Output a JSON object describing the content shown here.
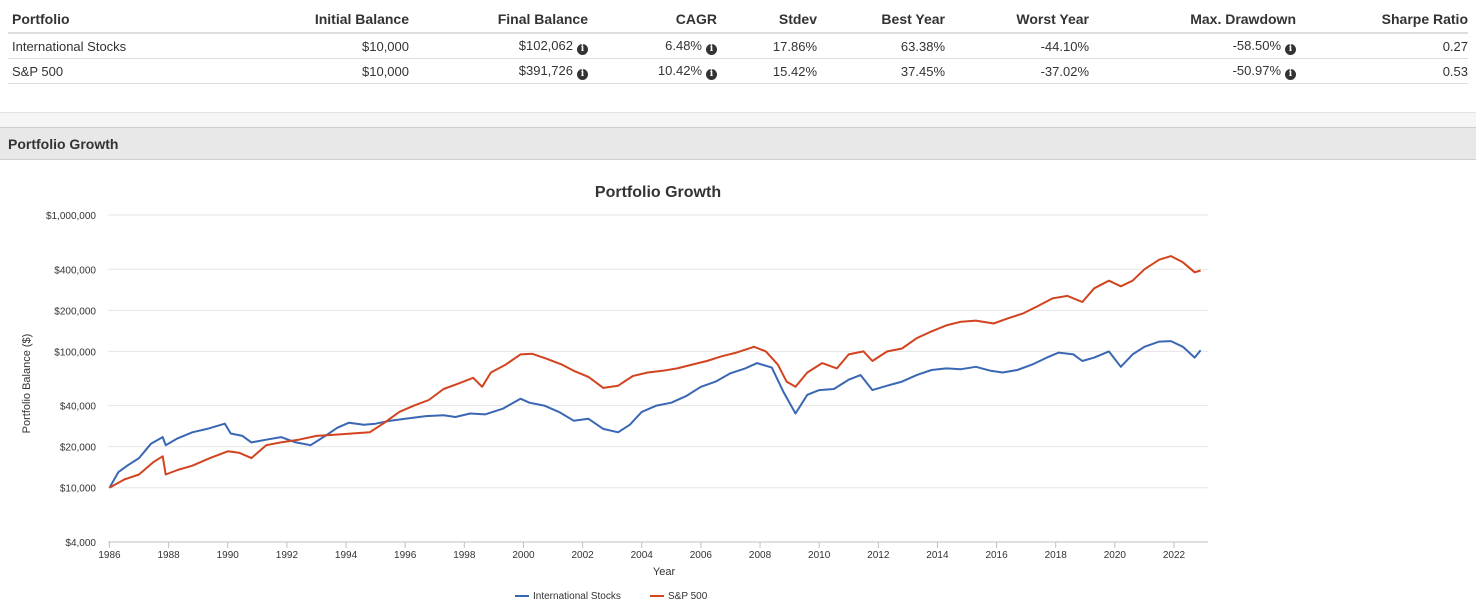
{
  "table": {
    "headers": [
      "Portfolio",
      "Initial Balance",
      "Final Balance",
      "CAGR",
      "Stdev",
      "Best Year",
      "Worst Year",
      "Max. Drawdown",
      "Sharpe Ratio"
    ],
    "rows": [
      {
        "portfolio": "International Stocks",
        "initial": "$10,000",
        "final": "$102,062",
        "cagr": "6.48%",
        "stdev": "17.86%",
        "best": "63.38%",
        "worst": "-44.10%",
        "drawdown": "-58.50%",
        "sharpe": "0.27"
      },
      {
        "portfolio": "S&P 500",
        "initial": "$10,000",
        "final": "$391,726",
        "cagr": "10.42%",
        "stdev": "15.42%",
        "best": "37.45%",
        "worst": "-37.02%",
        "drawdown": "-50.97%",
        "sharpe": "0.53"
      }
    ],
    "info_icon": "info-circle-icon"
  },
  "section_title": "Portfolio Growth",
  "chart_data": {
    "type": "line",
    "title": "Portfolio Growth",
    "xlabel": "Year",
    "ylabel": "Portfolio Balance ($)",
    "yscale": "log",
    "ylim": [
      4000,
      1000000
    ],
    "xlim": [
      1986,
      2023
    ],
    "yticks": [
      4000,
      10000,
      20000,
      40000,
      100000,
      200000,
      400000,
      1000000
    ],
    "ytick_labels": [
      "$4,000",
      "$10,000",
      "$20,000",
      "$40,000",
      "$100,000",
      "$200,000",
      "$400,000",
      "$1,000,000"
    ],
    "xticks": [
      1986,
      1988,
      1990,
      1992,
      1994,
      1996,
      1998,
      2000,
      2002,
      2004,
      2006,
      2008,
      2010,
      2012,
      2014,
      2016,
      2018,
      2020,
      2022
    ],
    "grid": true,
    "legend": "bottom-center",
    "series": [
      {
        "name": "International Stocks",
        "color": "#3a67b3",
        "x": [
          1986.0,
          1986.3,
          1986.6,
          1987.0,
          1987.4,
          1987.8,
          1987.9,
          1988.3,
          1988.8,
          1989.3,
          1989.9,
          1990.1,
          1990.5,
          1990.8,
          1991.3,
          1991.8,
          1992.3,
          1992.8,
          1993.3,
          1993.7,
          1994.1,
          1994.6,
          1995.0,
          1995.5,
          1996.0,
          1996.7,
          1997.3,
          1997.7,
          1998.2,
          1998.7,
          1999.3,
          1999.9,
          2000.2,
          2000.7,
          2001.2,
          2001.7,
          2002.2,
          2002.7,
          2003.2,
          2003.6,
          2004.0,
          2004.5,
          2005.0,
          2005.5,
          2006.0,
          2006.5,
          2007.0,
          2007.5,
          2007.9,
          2008.4,
          2008.8,
          2009.2,
          2009.6,
          2010.0,
          2010.5,
          2011.0,
          2011.4,
          2011.8,
          2012.3,
          2012.8,
          2013.3,
          2013.8,
          2014.3,
          2014.8,
          2015.3,
          2015.8,
          2016.2,
          2016.7,
          2017.2,
          2017.7,
          2018.1,
          2018.6,
          2018.9,
          2019.3,
          2019.8,
          2020.2,
          2020.6,
          2021.0,
          2021.5,
          2021.9,
          2022.3,
          2022.7,
          2022.9
        ],
        "values": [
          10000,
          13000,
          14500,
          16500,
          21000,
          23500,
          20500,
          23000,
          25500,
          27000,
          29500,
          25000,
          24000,
          21500,
          22500,
          23500,
          21500,
          20500,
          24000,
          27500,
          30000,
          29000,
          29500,
          31000,
          32000,
          33500,
          34000,
          33000,
          35000,
          34500,
          38000,
          45000,
          42000,
          40000,
          36000,
          31000,
          32000,
          27000,
          25500,
          29000,
          36000,
          40000,
          42000,
          47000,
          55000,
          60000,
          69000,
          75000,
          82000,
          76000,
          50000,
          35000,
          48000,
          52000,
          53000,
          62000,
          67000,
          52000,
          56000,
          60000,
          67000,
          73000,
          75000,
          74000,
          77000,
          72000,
          70000,
          73000,
          80000,
          90000,
          98000,
          95000,
          85000,
          90000,
          100000,
          77000,
          95000,
          108000,
          118000,
          119000,
          108000,
          90000,
          102062
        ]
      },
      {
        "name": "S&P 500",
        "color": "#d2431f",
        "x": [
          1986.0,
          1986.5,
          1987.0,
          1987.5,
          1987.8,
          1987.9,
          1988.3,
          1988.8,
          1989.4,
          1990.0,
          1990.4,
          1990.8,
          1991.3,
          1991.8,
          1992.4,
          1993.0,
          1993.6,
          1994.2,
          1994.8,
          1995.3,
          1995.8,
          1996.3,
          1996.8,
          1997.3,
          1997.8,
          1998.3,
          1998.6,
          1998.9,
          1999.4,
          1999.9,
          2000.3,
          2000.8,
          2001.3,
          2001.7,
          2002.2,
          2002.7,
          2003.2,
          2003.7,
          2004.2,
          2004.7,
          2005.2,
          2005.7,
          2006.2,
          2006.7,
          2007.2,
          2007.8,
          2008.2,
          2008.6,
          2008.9,
          2009.2,
          2009.6,
          2010.1,
          2010.6,
          2011.0,
          2011.5,
          2011.8,
          2012.3,
          2012.8,
          2013.3,
          2013.8,
          2014.3,
          2014.8,
          2015.3,
          2015.9,
          2016.4,
          2016.9,
          2017.4,
          2017.9,
          2018.4,
          2018.9,
          2019.3,
          2019.8,
          2020.2,
          2020.6,
          2021.0,
          2021.5,
          2021.9,
          2022.3,
          2022.7,
          2022.9
        ],
        "values": [
          10000,
          11500,
          12500,
          15500,
          17000,
          12500,
          13500,
          14500,
          16500,
          18500,
          18000,
          16500,
          20500,
          21500,
          22500,
          24000,
          24500,
          25000,
          25500,
          30000,
          36000,
          40000,
          44000,
          53000,
          58000,
          64000,
          55000,
          70000,
          80000,
          95000,
          96000,
          88000,
          80000,
          72000,
          65000,
          54000,
          56000,
          66000,
          70000,
          72000,
          75000,
          80000,
          85000,
          92000,
          98000,
          108000,
          100000,
          80000,
          60000,
          55000,
          70000,
          82000,
          75000,
          95000,
          100000,
          85000,
          100000,
          105000,
          125000,
          140000,
          155000,
          165000,
          168000,
          160000,
          175000,
          190000,
          215000,
          245000,
          255000,
          230000,
          290000,
          330000,
          300000,
          330000,
          400000,
          470000,
          500000,
          450000,
          380000,
          391726
        ]
      }
    ]
  }
}
